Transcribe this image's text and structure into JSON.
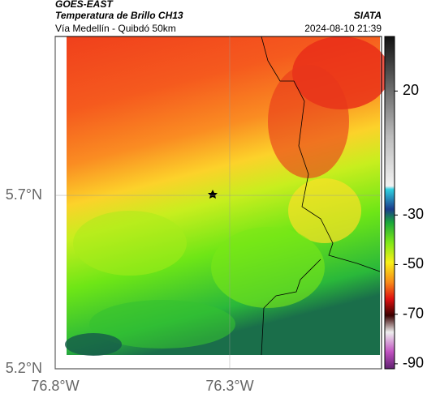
{
  "header": {
    "source": "GOES-EAST",
    "title": "Temperatura de Brillo CH13",
    "brand": "SIATA",
    "subtitle": "Vía Medellín - Quibdó 50km",
    "datetime": "2024-08-10 21:39"
  },
  "map": {
    "xlim": [
      -76.8,
      -75.865
    ],
    "ylim": [
      5.2,
      6.158
    ],
    "xticks": [
      {
        "value": -76.8,
        "label": "76.8°W"
      },
      {
        "value": -76.3,
        "label": "76.3°W"
      }
    ],
    "yticks": [
      {
        "value": 5.2,
        "label": "5.2°N"
      },
      {
        "value": 5.7,
        "label": "5.7°N"
      }
    ],
    "colorbar": {
      "clim": [
        -92,
        42
      ],
      "ticks": [
        20,
        -30,
        -50,
        -70,
        -90
      ]
    }
  }
}
